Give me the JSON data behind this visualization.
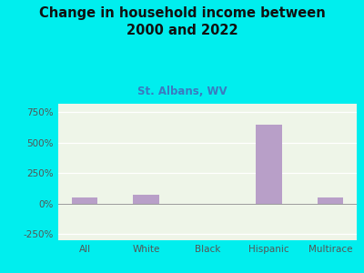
{
  "title": "Change in household income between\n2000 and 2022",
  "subtitle": "St. Albans, WV",
  "categories": [
    "All",
    "White",
    "Black",
    "Hispanic",
    "Multirace"
  ],
  "values": [
    50,
    75,
    2,
    650,
    48
  ],
  "bar_color": "#b89fc8",
  "background_outer": "#00eeee",
  "background_plot": "#eef5e8",
  "title_color": "#111111",
  "subtitle_color": "#3a7ac0",
  "tick_label_color": "#555555",
  "ylabel_ticks": [
    -250,
    0,
    250,
    500,
    750
  ],
  "ylim": [
    -300,
    820
  ],
  "title_fontsize": 10.5,
  "subtitle_fontsize": 8.5,
  "tick_fontsize": 7.5,
  "bar_width": 0.42
}
